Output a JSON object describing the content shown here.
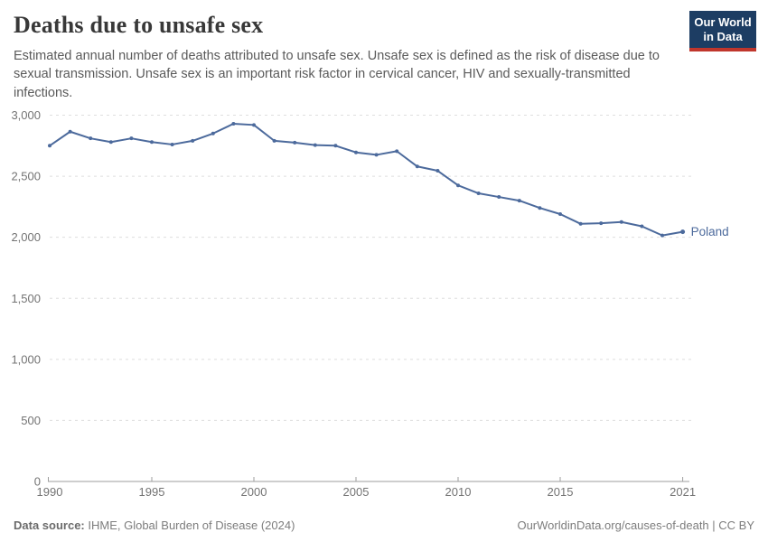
{
  "header": {
    "title": "Deaths due to unsafe sex",
    "subtitle": "Estimated annual number of deaths attributed to unsafe sex. Unsafe sex is defined as the risk of disease due to sexual transmission. Unsafe sex is an important risk factor in cervical cancer, HIV and sexually-transmitted infections.",
    "logo": {
      "line1": "Our World",
      "line2": "in Data",
      "bg_color": "#1d3d63",
      "accent_color": "#c0362c"
    }
  },
  "chart_data": {
    "type": "line",
    "title": "Deaths due to unsafe sex",
    "xlabel": "",
    "ylabel": "",
    "grid": "horizontal-dashed",
    "legend_position": "end-of-line",
    "ylim": [
      0,
      3000
    ],
    "xlim": [
      1990,
      2021
    ],
    "x": [
      1990,
      1991,
      1992,
      1993,
      1994,
      1995,
      1996,
      1997,
      1998,
      1999,
      2000,
      2001,
      2002,
      2003,
      2004,
      2005,
      2006,
      2007,
      2008,
      2009,
      2010,
      2011,
      2012,
      2013,
      2014,
      2015,
      2016,
      2017,
      2018,
      2019,
      2020,
      2021
    ],
    "series": [
      {
        "name": "Poland",
        "color": "#4C6A9C",
        "values": [
          2750,
          2865,
          2810,
          2780,
          2810,
          2780,
          2760,
          2790,
          2850,
          2930,
          2920,
          2790,
          2775,
          2755,
          2750,
          2695,
          2675,
          2705,
          2580,
          2545,
          2425,
          2360,
          2330,
          2300,
          2240,
          2190,
          2110,
          2115,
          2125,
          2090,
          2015,
          2045
        ]
      }
    ],
    "yticks": [
      {
        "value": 0,
        "label": "0"
      },
      {
        "value": 500,
        "label": "500"
      },
      {
        "value": 1000,
        "label": "1,000"
      },
      {
        "value": 1500,
        "label": "1,500"
      },
      {
        "value": 2000,
        "label": "2,000"
      },
      {
        "value": 2500,
        "label": "2,500"
      },
      {
        "value": 3000,
        "label": "3,000"
      }
    ],
    "xticks": [
      {
        "value": 1990,
        "label": "1990"
      },
      {
        "value": 1995,
        "label": "1995"
      },
      {
        "value": 2000,
        "label": "2000"
      },
      {
        "value": 2005,
        "label": "2005"
      },
      {
        "value": 2010,
        "label": "2010"
      },
      {
        "value": 2015,
        "label": "2015"
      },
      {
        "value": 2021,
        "label": "2021"
      }
    ],
    "end_label": "Poland"
  },
  "footer": {
    "source_label": "Data source:",
    "source_text": " IHME, Global Burden of Disease (2024)",
    "link_text": "OurWorldinData.org/causes-of-death | CC BY"
  },
  "colors": {
    "line": "#4C6A9C",
    "gridline": "#dedede",
    "axis": "#9e9e9e",
    "tick_label": "#737373"
  }
}
